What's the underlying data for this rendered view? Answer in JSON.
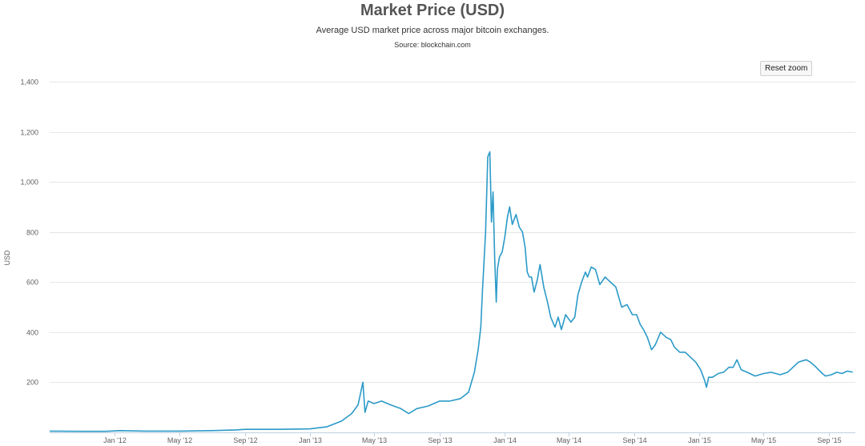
{
  "header": {
    "title": "Market Price (USD)",
    "subtitle": "Average USD market price across major bitcoin exchanges.",
    "source": "Source: blockchain.com"
  },
  "controls": {
    "reset_zoom_label": "Reset zoom"
  },
  "colors": {
    "line": "#2b9ac8",
    "grid": "#e6e6e6",
    "axis": "#c0d0e0"
  },
  "chart_data": {
    "type": "line",
    "title": "Market Price (USD)",
    "subtitle": "Average USD market price across major bitcoin exchanges.",
    "ylabel": "USD",
    "xlabel": "",
    "ylim": [
      0,
      1400
    ],
    "yticks": [
      200,
      400,
      600,
      800,
      1000,
      1200,
      1400
    ],
    "ytick_labels": [
      "200",
      "400",
      "600",
      "800",
      "1,000",
      "1,200",
      "1,400"
    ],
    "xlim": [
      "2011-09-01",
      "2015-10-20"
    ],
    "xticks": [
      "2012-01-01",
      "2012-05-01",
      "2012-09-01",
      "2013-01-01",
      "2013-05-01",
      "2013-09-01",
      "2014-01-01",
      "2014-05-01",
      "2014-09-01",
      "2015-01-01",
      "2015-05-01",
      "2015-09-01"
    ],
    "xtick_labels": [
      "Jan '12",
      "May '12",
      "Sep '12",
      "Jan '13",
      "May '13",
      "Sep '13",
      "Jan '14",
      "May '14",
      "Sep '14",
      "Jan '15",
      "May '15",
      "Sep '15"
    ],
    "grid": true,
    "series": [
      {
        "x": [
          "2011-09-01",
          "2011-11-01",
          "2011-12-15",
          "2012-01-10",
          "2012-03-01",
          "2012-05-01",
          "2012-07-01",
          "2012-08-15",
          "2012-09-01",
          "2012-11-01",
          "2013-01-01",
          "2013-02-01",
          "2013-03-01",
          "2013-03-20",
          "2013-04-01",
          "2013-04-10",
          "2013-04-14",
          "2013-04-20",
          "2013-05-01",
          "2013-05-15",
          "2013-06-01",
          "2013-06-20",
          "2013-07-05",
          "2013-07-20",
          "2013-08-10",
          "2013-09-01",
          "2013-09-20",
          "2013-10-10",
          "2013-10-25",
          "2013-11-05",
          "2013-11-12",
          "2013-11-17",
          "2013-11-20",
          "2013-11-26",
          "2013-11-30",
          "2013-12-04",
          "2013-12-07",
          "2013-12-10",
          "2013-12-13",
          "2013-12-16",
          "2013-12-18",
          "2013-12-22",
          "2013-12-27",
          "2014-01-01",
          "2014-01-06",
          "2014-01-10",
          "2014-01-15",
          "2014-01-22",
          "2014-01-28",
          "2014-02-03",
          "2014-02-08",
          "2014-02-12",
          "2014-02-16",
          "2014-02-20",
          "2014-02-25",
          "2014-03-03",
          "2014-03-08",
          "2014-03-15",
          "2014-03-22",
          "2014-03-28",
          "2014-04-05",
          "2014-04-11",
          "2014-04-17",
          "2014-04-25",
          "2014-05-05",
          "2014-05-12",
          "2014-05-18",
          "2014-05-25",
          "2014-06-01",
          "2014-06-05",
          "2014-06-12",
          "2014-06-20",
          "2014-06-28",
          "2014-07-08",
          "2014-07-18",
          "2014-07-28",
          "2014-08-08",
          "2014-08-18",
          "2014-08-28",
          "2014-09-05",
          "2014-09-12",
          "2014-09-18",
          "2014-09-25",
          "2014-10-03",
          "2014-10-10",
          "2014-10-20",
          "2014-10-30",
          "2014-11-08",
          "2014-11-15",
          "2014-11-25",
          "2014-12-05",
          "2014-12-15",
          "2014-12-25",
          "2015-01-03",
          "2015-01-10",
          "2015-01-14",
          "2015-01-18",
          "2015-01-25",
          "2015-02-05",
          "2015-02-15",
          "2015-02-25",
          "2015-03-05",
          "2015-03-12",
          "2015-03-20",
          "2015-03-31",
          "2015-04-15",
          "2015-05-01",
          "2015-05-15",
          "2015-06-01",
          "2015-06-15",
          "2015-06-25",
          "2015-07-05",
          "2015-07-12",
          "2015-07-20",
          "2015-07-28",
          "2015-08-05",
          "2015-08-12",
          "2015-08-19",
          "2015-08-25",
          "2015-09-05",
          "2015-09-15",
          "2015-09-25",
          "2015-10-05",
          "2015-10-15"
        ],
        "y": [
          5,
          4,
          4,
          7,
          5,
          5,
          7,
          10,
          12,
          12,
          14,
          22,
          45,
          75,
          110,
          200,
          80,
          125,
          115,
          125,
          110,
          95,
          75,
          95,
          105,
          125,
          125,
          135,
          160,
          240,
          330,
          420,
          560,
          800,
          1100,
          1120,
          840,
          960,
          700,
          520,
          650,
          700,
          720,
          780,
          860,
          900,
          830,
          870,
          820,
          800,
          740,
          640,
          620,
          620,
          560,
          610,
          670,
          580,
          520,
          460,
          420,
          460,
          410,
          470,
          440,
          460,
          550,
          600,
          640,
          620,
          660,
          650,
          590,
          620,
          600,
          580,
          500,
          510,
          470,
          470,
          430,
          410,
          380,
          330,
          350,
          400,
          380,
          370,
          340,
          320,
          320,
          300,
          280,
          250,
          210,
          180,
          220,
          220,
          235,
          240,
          260,
          260,
          290,
          250,
          240,
          225,
          235,
          240,
          230,
          240,
          260,
          280,
          285,
          290,
          280,
          265,
          250,
          235,
          225,
          230,
          240,
          235,
          245,
          240
        ]
      }
    ]
  }
}
